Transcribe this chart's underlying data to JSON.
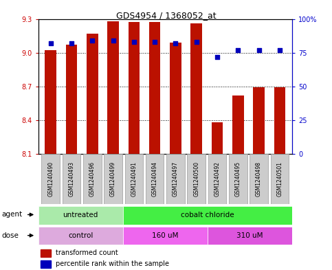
{
  "title": "GDS4954 / 1368052_at",
  "samples": [
    "GSM1240490",
    "GSM1240493",
    "GSM1240496",
    "GSM1240499",
    "GSM1240491",
    "GSM1240494",
    "GSM1240497",
    "GSM1240500",
    "GSM1240492",
    "GSM1240495",
    "GSM1240498",
    "GSM1240501"
  ],
  "transformed_count": [
    9.02,
    9.07,
    9.17,
    9.28,
    9.27,
    9.27,
    9.09,
    9.26,
    8.38,
    8.62,
    8.69,
    8.69
  ],
  "percentile_rank": [
    82,
    82,
    84,
    84,
    83,
    83,
    82,
    83,
    72,
    77,
    77,
    77
  ],
  "y_min": 8.1,
  "y_max": 9.3,
  "y_ticks": [
    8.1,
    8.4,
    8.7,
    9.0,
    9.3
  ],
  "right_y_ticks": [
    0,
    25,
    50,
    75,
    100
  ],
  "right_y_tick_labels": [
    "0",
    "25",
    "50",
    "75",
    "100%"
  ],
  "agent_groups": [
    {
      "label": "untreated",
      "start": 0,
      "end": 4,
      "color": "#aaeaaa"
    },
    {
      "label": "cobalt chloride",
      "start": 4,
      "end": 12,
      "color": "#44ee44"
    }
  ],
  "dose_groups": [
    {
      "label": "control",
      "start": 0,
      "end": 4,
      "color": "#ddaadd"
    },
    {
      "label": "160 uM",
      "start": 4,
      "end": 8,
      "color": "#ee66ee"
    },
    {
      "label": "310 uM",
      "start": 8,
      "end": 12,
      "color": "#dd55dd"
    }
  ],
  "bar_color": "#bb1100",
  "dot_color": "#0000bb",
  "sample_box_color": "#cccccc",
  "sample_box_edge": "#999999"
}
